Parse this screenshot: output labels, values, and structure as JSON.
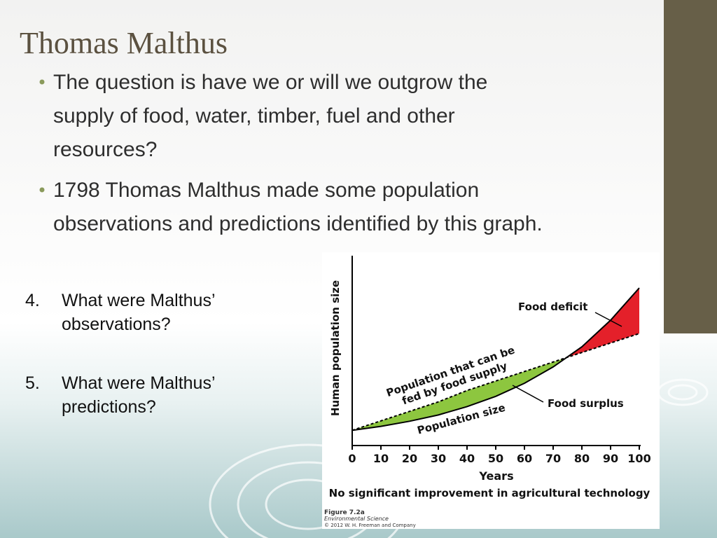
{
  "slide": {
    "title": "Thomas Malthus",
    "bullets": [
      [
        "The question is have we or will we outgrow the",
        "supply of food, water, timber, fuel and other",
        "resources?"
      ],
      [
        "1798 Thomas Malthus made some population",
        "observations and predictions identified by this graph."
      ]
    ],
    "questions": [
      {
        "number": "4.",
        "lines": [
          "What were Malthus’",
          "observations?"
        ]
      },
      {
        "number": "5.",
        "lines": [
          "What were Malthus’",
          "predictions?"
        ]
      }
    ]
  },
  "chart_data": {
    "type": "line",
    "ylabel": "Human population size",
    "xlabel": "Years",
    "caption": "No significant improvement in agricultural technology",
    "figure": [
      "Figure 7.2a",
      "Environmental Science",
      "© 2012 W. H. Freeman and Company"
    ],
    "annotations": {
      "deficit": "Food deficit",
      "surplus": "Food surplus",
      "food": [
        "Population that can be",
        "fed by food supply"
      ],
      "population": "Population size"
    },
    "x": [
      0,
      10,
      20,
      30,
      40,
      50,
      60,
      70,
      80,
      90,
      100
    ],
    "series": [
      {
        "name": "Population size",
        "color": "#000000",
        "values": [
          8,
          10.1,
          12.8,
          16.1,
          20.5,
          25.9,
          32.8,
          41.4,
          52,
          66,
          83
        ]
      },
      {
        "name": "Population that can be fed by food supply",
        "color": "#000000",
        "values": [
          8,
          13,
          18,
          23,
          29,
          34,
          39,
          44,
          49,
          54,
          59
        ]
      }
    ],
    "surplus_color": "#8dc63f",
    "deficit_color": "#e4202a",
    "xlim": [
      0,
      100
    ],
    "xticks": [
      0,
      10,
      20,
      30,
      40,
      50,
      60,
      70,
      80,
      90,
      100
    ],
    "ylim": [
      0,
      100
    ]
  }
}
